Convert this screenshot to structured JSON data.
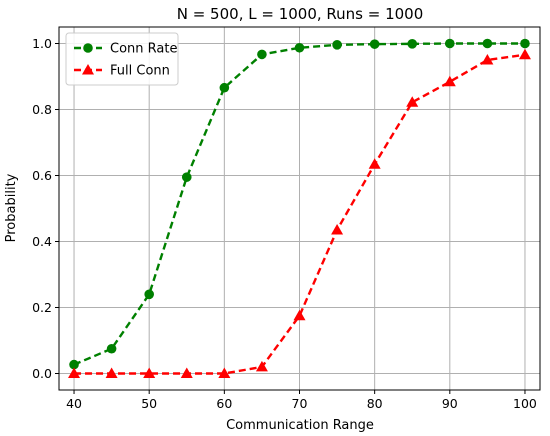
{
  "chart_data": {
    "type": "line",
    "title": "N = 500, L = 1000, Runs = 1000",
    "xlabel": "Communication Range",
    "ylabel": "Probability",
    "xlim": [
      38,
      102
    ],
    "ylim": [
      -0.05,
      1.05
    ],
    "xticks": [
      40,
      50,
      60,
      70,
      80,
      90,
      100
    ],
    "yticks": [
      0.0,
      0.2,
      0.4,
      0.6,
      0.8,
      1.0
    ],
    "xtick_labels": [
      "40",
      "50",
      "60",
      "70",
      "80",
      "90",
      "100"
    ],
    "ytick_labels": [
      "0.0",
      "0.2",
      "0.4",
      "0.6",
      "0.8",
      "1.0"
    ],
    "grid": true,
    "legend_position": "top-left",
    "series": [
      {
        "name": "Conn Rate",
        "color": "#008000",
        "marker": "circle",
        "line_style": "dashed",
        "x": [
          40,
          45,
          50,
          55,
          60,
          65,
          70,
          75,
          80,
          85,
          90,
          95,
          100
        ],
        "y": [
          0.027,
          0.075,
          0.24,
          0.595,
          0.866,
          0.967,
          0.987,
          0.996,
          0.998,
          0.999,
          1.0,
          1.0,
          1.0
        ]
      },
      {
        "name": "Full Conn",
        "color": "#ff0000",
        "marker": "triangle",
        "line_style": "dashed",
        "x": [
          40,
          45,
          50,
          55,
          60,
          65,
          70,
          75,
          80,
          85,
          90,
          95,
          100
        ],
        "y": [
          0.0,
          0.0,
          0.0,
          0.0,
          0.0,
          0.02,
          0.175,
          0.435,
          0.634,
          0.822,
          0.884,
          0.95,
          0.966
        ]
      }
    ]
  }
}
